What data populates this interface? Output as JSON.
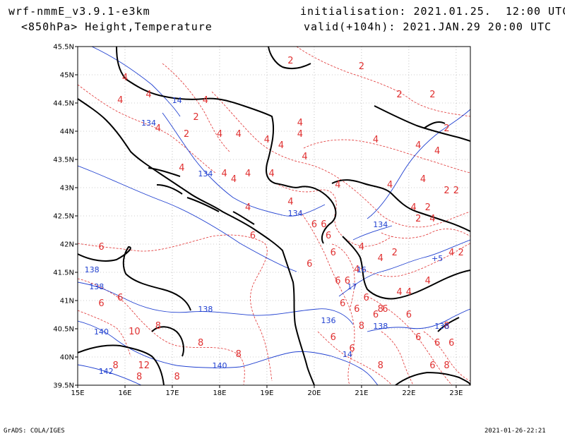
{
  "header": {
    "model": "wrf-nmmE_v3.9.1-e3km",
    "initialisation": "initialisation: 2021.01.25.  12:00 UTC",
    "field": "<850hPa> Height,Temperature",
    "valid": "valid(+104h): 2021.JAN.29 20:00 UTC"
  },
  "footer": {
    "left": "GrADS: COLA/IGES",
    "right": "2021-01-26-22:21"
  },
  "map": {
    "lon_range": [
      15,
      23.3
    ],
    "lat_range": [
      39.5,
      45.5
    ],
    "lon_ticks": [
      "15E",
      "16E",
      "17E",
      "18E",
      "19E",
      "20E",
      "21E",
      "22E",
      "23E"
    ],
    "lat_ticks": [
      "45.5N",
      "45N",
      "44.5N",
      "44N",
      "43.5N",
      "43N",
      "42.5N",
      "42N",
      "41.5N",
      "41N",
      "40.5N",
      "40N",
      "39.5N"
    ],
    "temperature_color": "#e03030",
    "height_color": "#2040d0",
    "temperature_labels": [
      {
        "t": "4",
        "lon": 16.0,
        "lat": 44.9
      },
      {
        "t": "4",
        "lon": 16.5,
        "lat": 44.6
      },
      {
        "t": "4",
        "lon": 15.9,
        "lat": 44.5
      },
      {
        "t": "2",
        "lon": 17.5,
        "lat": 44.2
      },
      {
        "t": "2",
        "lon": 17.3,
        "lat": 43.9
      },
      {
        "t": "4",
        "lon": 16.7,
        "lat": 44.0
      },
      {
        "t": "4",
        "lon": 17.7,
        "lat": 44.5
      },
      {
        "t": "4",
        "lon": 18.0,
        "lat": 43.9
      },
      {
        "t": "4",
        "lon": 18.4,
        "lat": 43.9
      },
      {
        "t": "4",
        "lon": 17.2,
        "lat": 43.3
      },
      {
        "t": "4",
        "lon": 18.1,
        "lat": 43.2
      },
      {
        "t": "4",
        "lon": 18.3,
        "lat": 43.1
      },
      {
        "t": "4",
        "lon": 18.6,
        "lat": 43.2
      },
      {
        "t": "4",
        "lon": 19.1,
        "lat": 43.2
      },
      {
        "t": "4",
        "lon": 18.6,
        "lat": 42.6
      },
      {
        "t": "4",
        "lon": 19.0,
        "lat": 43.8
      },
      {
        "t": "4",
        "lon": 19.3,
        "lat": 43.7
      },
      {
        "t": "4",
        "lon": 19.7,
        "lat": 43.9
      },
      {
        "t": "4",
        "lon": 19.7,
        "lat": 44.1
      },
      {
        "t": "4",
        "lon": 19.5,
        "lat": 42.7
      },
      {
        "t": "4",
        "lon": 19.8,
        "lat": 43.5
      },
      {
        "t": "4",
        "lon": 20.5,
        "lat": 43.0
      },
      {
        "t": "4",
        "lon": 21.3,
        "lat": 43.8
      },
      {
        "t": "4",
        "lon": 21.6,
        "lat": 43.0
      },
      {
        "t": "4",
        "lon": 22.2,
        "lat": 43.7
      },
      {
        "t": "4",
        "lon": 22.3,
        "lat": 43.1
      },
      {
        "t": "4",
        "lon": 22.6,
        "lat": 43.6
      },
      {
        "t": "4",
        "lon": 22.1,
        "lat": 42.6
      },
      {
        "t": "4",
        "lon": 22.5,
        "lat": 42.4
      },
      {
        "t": "4",
        "lon": 22.9,
        "lat": 41.8
      },
      {
        "t": "4",
        "lon": 21.4,
        "lat": 41.7
      },
      {
        "t": "4",
        "lon": 21.0,
        "lat": 41.9
      },
      {
        "t": "4",
        "lon": 20.9,
        "lat": 41.5
      },
      {
        "t": "4",
        "lon": 21.8,
        "lat": 41.1
      },
      {
        "t": "4",
        "lon": 22.0,
        "lat": 41.1
      },
      {
        "t": "4",
        "lon": 22.4,
        "lat": 41.3
      },
      {
        "t": "2",
        "lon": 19.5,
        "lat": 45.2
      },
      {
        "t": "2",
        "lon": 21.0,
        "lat": 45.1
      },
      {
        "t": "2",
        "lon": 21.8,
        "lat": 44.6
      },
      {
        "t": "2",
        "lon": 22.5,
        "lat": 44.6
      },
      {
        "t": "2",
        "lon": 22.8,
        "lat": 44.0
      },
      {
        "t": "2",
        "lon": 22.8,
        "lat": 42.9
      },
      {
        "t": "2",
        "lon": 23.0,
        "lat": 42.9
      },
      {
        "t": "2",
        "lon": 22.4,
        "lat": 42.6
      },
      {
        "t": "2",
        "lon": 22.2,
        "lat": 42.4
      },
      {
        "t": "2",
        "lon": 21.7,
        "lat": 41.8
      },
      {
        "t": "2",
        "lon": 23.1,
        "lat": 41.8
      },
      {
        "t": "6",
        "lon": 15.5,
        "lat": 41.9
      },
      {
        "t": "6",
        "lon": 18.7,
        "lat": 42.1
      },
      {
        "t": "6",
        "lon": 19.9,
        "lat": 41.6
      },
      {
        "t": "6",
        "lon": 20.0,
        "lat": 42.3
      },
      {
        "t": "6",
        "lon": 20.2,
        "lat": 42.3
      },
      {
        "t": "6",
        "lon": 20.3,
        "lat": 42.1
      },
      {
        "t": "6",
        "lon": 20.4,
        "lat": 41.8
      },
      {
        "t": "6",
        "lon": 20.5,
        "lat": 41.3
      },
      {
        "t": "6",
        "lon": 20.7,
        "lat": 41.3
      },
      {
        "t": "6",
        "lon": 20.6,
        "lat": 40.9
      },
      {
        "t": "6",
        "lon": 20.9,
        "lat": 40.8
      },
      {
        "t": "6",
        "lon": 21.1,
        "lat": 41.0
      },
      {
        "t": "6",
        "lon": 20.4,
        "lat": 40.3
      },
      {
        "t": "6",
        "lon": 20.8,
        "lat": 40.1
      },
      {
        "t": "6",
        "lon": 21.3,
        "lat": 40.7
      },
      {
        "t": "6",
        "lon": 21.5,
        "lat": 40.8
      },
      {
        "t": "6",
        "lon": 22.0,
        "lat": 40.7
      },
      {
        "t": "6",
        "lon": 22.2,
        "lat": 40.3
      },
      {
        "t": "6",
        "lon": 22.6,
        "lat": 40.2
      },
      {
        "t": "6",
        "lon": 22.5,
        "lat": 39.8
      },
      {
        "t": "6",
        "lon": 22.9,
        "lat": 40.2
      },
      {
        "t": "6",
        "lon": 15.5,
        "lat": 40.9
      },
      {
        "t": "6",
        "lon": 15.9,
        "lat": 41.0
      },
      {
        "t": "8",
        "lon": 16.7,
        "lat": 40.5
      },
      {
        "t": "8",
        "lon": 15.8,
        "lat": 39.8
      },
      {
        "t": "8",
        "lon": 16.3,
        "lat": 39.6
      },
      {
        "t": "8",
        "lon": 17.1,
        "lat": 39.6
      },
      {
        "t": "8",
        "lon": 17.6,
        "lat": 40.2
      },
      {
        "t": "8",
        "lon": 18.4,
        "lat": 40.0
      },
      {
        "t": "8",
        "lon": 21.0,
        "lat": 40.5
      },
      {
        "t": "8",
        "lon": 21.4,
        "lat": 40.8
      },
      {
        "t": "8",
        "lon": 21.4,
        "lat": 39.8
      },
      {
        "t": "8",
        "lon": 22.8,
        "lat": 40.5
      },
      {
        "t": "8",
        "lon": 22.8,
        "lat": 39.8
      },
      {
        "t": "10",
        "lon": 16.2,
        "lat": 40.4
      },
      {
        "t": "12",
        "lon": 16.4,
        "lat": 39.8
      }
    ],
    "height_labels": [
      {
        "t": "134",
        "lon": 16.5,
        "lat": 44.1
      },
      {
        "t": "134",
        "lon": 17.7,
        "lat": 43.2
      },
      {
        "t": "134",
        "lon": 19.6,
        "lat": 42.5
      },
      {
        "t": "134",
        "lon": 21.4,
        "lat": 42.3
      },
      {
        "t": "14",
        "lon": 17.1,
        "lat": 44.5
      },
      {
        "t": "138",
        "lon": 15.3,
        "lat": 41.5
      },
      {
        "t": "138",
        "lon": 15.4,
        "lat": 41.2
      },
      {
        "t": "138",
        "lon": 17.7,
        "lat": 40.8
      },
      {
        "t": "138",
        "lon": 21.4,
        "lat": 40.5
      },
      {
        "t": "138",
        "lon": 22.7,
        "lat": 40.5
      },
      {
        "t": "136",
        "lon": 20.3,
        "lat": 40.6
      },
      {
        "t": "140",
        "lon": 15.5,
        "lat": 40.4
      },
      {
        "t": "140",
        "lon": 18.0,
        "lat": 39.8
      },
      {
        "t": "142",
        "lon": 15.6,
        "lat": 39.7
      },
      {
        "t": "14",
        "lon": 20.7,
        "lat": 40.0
      },
      {
        "t": "16",
        "lon": 21.0,
        "lat": 41.5
      },
      {
        "t": "17",
        "lon": 20.8,
        "lat": 41.2
      },
      {
        "t": "+5",
        "lon": 22.6,
        "lat": 41.7
      }
    ]
  }
}
